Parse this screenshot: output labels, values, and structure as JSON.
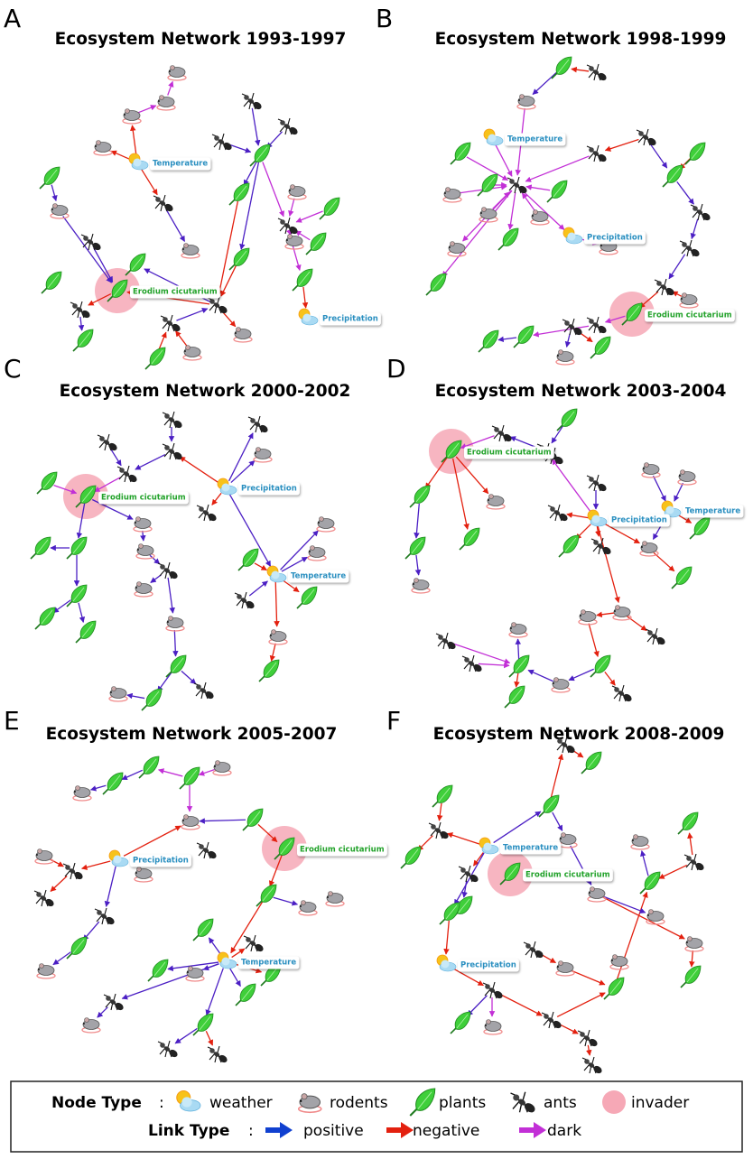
{
  "panels": [
    {
      "letter": "A",
      "title": "Ecosystem Network 1993-1997",
      "labels": [
        "Temperature",
        "Erodium cicutarium",
        "Precipitation"
      ]
    },
    {
      "letter": "B",
      "title": "Ecosystem Network 1998-1999",
      "labels": [
        "Temperature",
        "Precipitation",
        "Erodium cicutarium"
      ]
    },
    {
      "letter": "C",
      "title": "Ecosystem Network 2000-2002",
      "labels": [
        "Precipitation",
        "Erodium cicutarium",
        "Temperature"
      ]
    },
    {
      "letter": "D",
      "title": "Ecosystem Network 2003-2004",
      "labels": [
        "Erodium cicutarium",
        "Precipitation",
        "Temperature"
      ]
    },
    {
      "letter": "E",
      "title": "Ecosystem Network 2005-2007",
      "labels": [
        "Erodium cicutarium",
        "Precipitation",
        "Temperature"
      ]
    },
    {
      "letter": "F",
      "title": "Ecosystem Network 2008-2009",
      "labels": [
        "Temperature",
        "Erodium cicutarium",
        "Precipitation"
      ]
    }
  ],
  "legend": {
    "node_type_label": "Node Type",
    "separator": ":",
    "node_types": [
      "weather",
      "rodents",
      "plants",
      "ants",
      "invader"
    ],
    "link_type_label": "Link Type",
    "link_types": [
      "positive",
      "negative",
      "dark"
    ]
  }
}
